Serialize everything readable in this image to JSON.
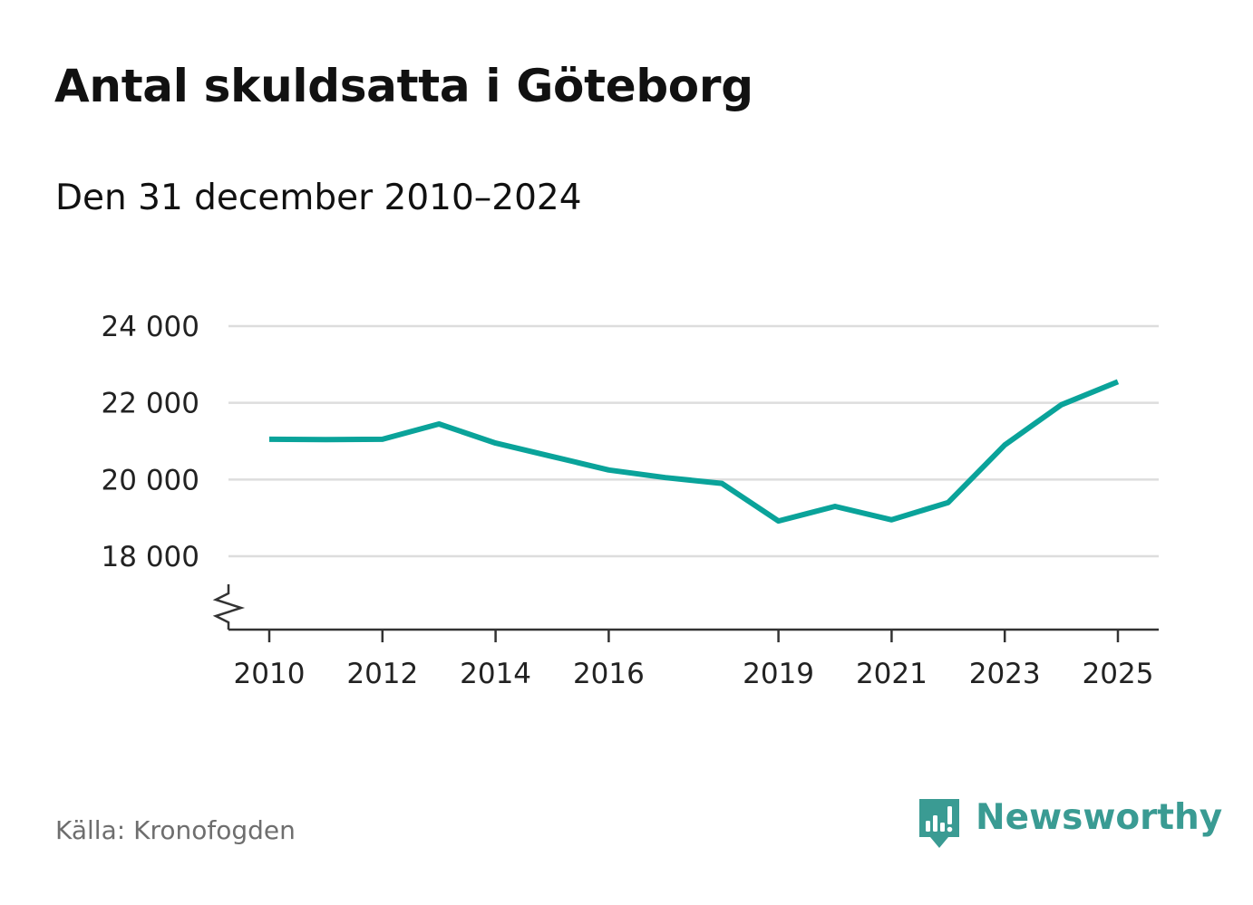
{
  "title": "Antal skuldsatta i Göteborg",
  "subtitle": "Den 31 december 2010–2024",
  "source": "Källa: Kronofogden",
  "brand": {
    "name": "Newsworthy",
    "logo_icon": "bar-chart-speech-bubble-icon"
  },
  "colors": {
    "line": "#0aa39a",
    "grid": "#dddddd",
    "axis": "#333333",
    "text": "#222222",
    "source": "#6e6e6e",
    "brand": "#3a9b93"
  },
  "chart_data": {
    "type": "line",
    "title": "Antal skuldsatta i Göteborg",
    "subtitle": "Den 31 december 2010–2024",
    "xlabel": "",
    "ylabel": "",
    "x": [
      2010,
      2011,
      2012,
      2013,
      2014,
      2015,
      2016,
      2017,
      2018,
      2019,
      2020,
      2021,
      2022,
      2023,
      2024,
      2025
    ],
    "series": [
      {
        "name": "Antal skuldsatta",
        "values": [
          21050,
          21040,
          21050,
          21450,
          20950,
          20600,
          20250,
          20050,
          19900,
          18920,
          19300,
          18950,
          19400,
          20900,
          21950,
          22550
        ]
      }
    ],
    "yticks": [
      18000,
      20000,
      22000,
      24000
    ],
    "ytick_labels": [
      "18 000",
      "20 000",
      "22 000",
      "24 000"
    ],
    "xticks": [
      2010,
      2012,
      2014,
      2016,
      2019,
      2021,
      2023,
      2025
    ],
    "xtick_labels": [
      "2010",
      "2012",
      "2014",
      "2016",
      "2019",
      "2021",
      "2023",
      "2025"
    ],
    "ylim": [
      16000,
      24000
    ],
    "xlim": [
      2010,
      2025
    ],
    "y_axis_break": true,
    "grid": true,
    "legend": "none"
  }
}
